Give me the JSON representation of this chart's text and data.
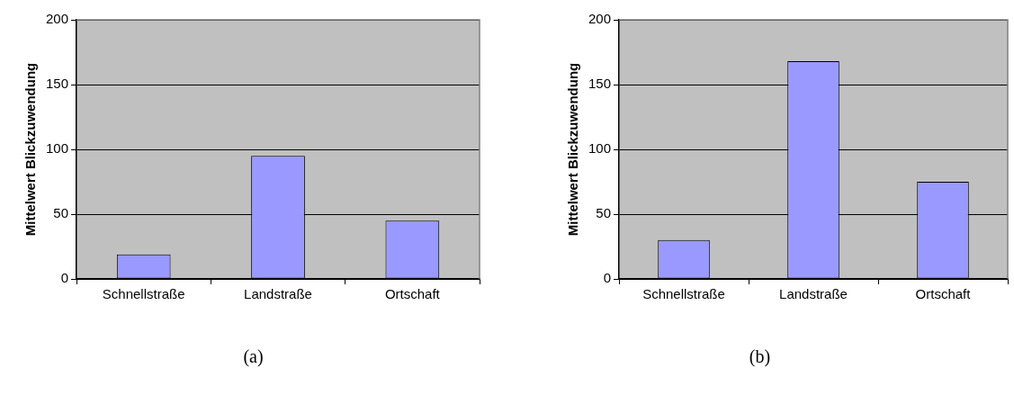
{
  "chart_data": [
    {
      "type": "bar",
      "categories": [
        "Schnellstraße",
        "Landstraße",
        "Ortschaft"
      ],
      "values": [
        19,
        95,
        45
      ],
      "color": "#9999ff",
      "ylabel": "Mittelwert Blickzuwendung",
      "ylim": [
        0,
        200
      ],
      "yticks": [
        0,
        50,
        100,
        150,
        200
      ],
      "grid": "y",
      "annotations": [
        "(a)"
      ]
    },
    {
      "type": "bar",
      "categories": [
        "Schnellstraße",
        "Landstraße",
        "Ortschaft"
      ],
      "values": [
        30,
        168,
        75
      ],
      "color": "#9999ff",
      "ylabel": "Mittelwert Blickzuwendung",
      "ylim": [
        0,
        200
      ],
      "yticks": [
        0,
        50,
        100,
        150,
        200
      ],
      "grid": "y",
      "annotations": [
        "(b)"
      ]
    }
  ]
}
